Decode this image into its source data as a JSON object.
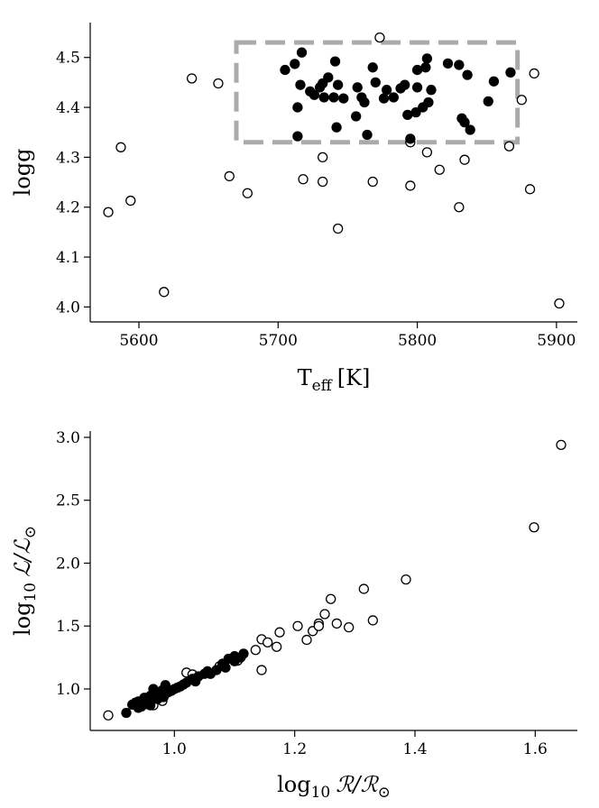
{
  "colors": {
    "open_marker_face": "#ffffff",
    "filled_marker_face": "#000000",
    "selection_box": "#aaaaaa",
    "axes": "#000000"
  },
  "chart_data": [
    {
      "type": "scatter",
      "title": "",
      "xlabel_main": "T",
      "xlabel_sub": "eff",
      "xlabel_unit": "[K]",
      "ylabel": "logg",
      "xlim": [
        5565,
        5915
      ],
      "ylim": [
        3.97,
        4.57
      ],
      "xticks": [
        5600,
        5700,
        5800,
        5900
      ],
      "yticks": [
        4.0,
        4.1,
        4.2,
        4.3,
        4.4,
        4.5
      ],
      "ytick_labels": [
        "4.0",
        "4.1",
        "4.2",
        "4.3",
        "4.4",
        "4.5"
      ],
      "grid": false,
      "selection_box": {
        "x_range": [
          5670,
          5872
        ],
        "y_range": [
          4.33,
          4.53
        ],
        "style": "dashed"
      },
      "series": [
        {
          "marker": "open",
          "x": [
            5578,
            5587,
            5594,
            5618,
            5638,
            5657,
            5665,
            5678,
            5718,
            5732,
            5732,
            5743,
            5768,
            5773,
            5795,
            5795,
            5807,
            5816,
            5830,
            5834,
            5866,
            5875,
            5881,
            5884,
            5902
          ],
          "y": [
            4.19,
            4.32,
            4.213,
            4.03,
            4.458,
            4.448,
            4.262,
            4.228,
            4.256,
            4.3,
            4.251,
            4.157,
            4.251,
            4.54,
            4.243,
            4.33,
            4.31,
            4.275,
            4.2,
            4.295,
            4.322,
            4.415,
            4.236,
            4.468,
            4.007
          ]
        },
        {
          "marker": "filled",
          "x": [
            5705,
            5712,
            5714,
            5716,
            5714,
            5717,
            5723,
            5726,
            5730,
            5732,
            5733,
            5736,
            5740,
            5741,
            5743,
            5742,
            5747,
            5756,
            5757,
            5760,
            5762,
            5764,
            5768,
            5770,
            5776,
            5778,
            5783,
            5788,
            5791,
            5793,
            5795,
            5799,
            5800,
            5800,
            5804,
            5806,
            5807,
            5808,
            5810,
            5822,
            5830,
            5832,
            5834,
            5836,
            5838,
            5851,
            5855,
            5867
          ],
          "y": [
            4.475,
            4.487,
            4.342,
            4.445,
            4.4,
            4.51,
            4.432,
            4.425,
            4.44,
            4.448,
            4.42,
            4.46,
            4.42,
            4.492,
            4.445,
            4.36,
            4.418,
            4.382,
            4.44,
            4.42,
            4.41,
            4.345,
            4.48,
            4.45,
            4.418,
            4.435,
            4.42,
            4.438,
            4.445,
            4.385,
            4.337,
            4.39,
            4.475,
            4.44,
            4.4,
            4.48,
            4.498,
            4.41,
            4.435,
            4.488,
            4.485,
            4.378,
            4.37,
            4.465,
            4.355,
            4.412,
            4.452,
            4.47
          ]
        }
      ]
    },
    {
      "type": "scatter",
      "title": "",
      "xlabel_prefix": "log",
      "xlabel_sub": "10",
      "xlabel_symbol": "ℛ/ℛ",
      "xlabel_subsymbol": "⊙",
      "ylabel_prefix": "log",
      "ylabel_sub": "10",
      "ylabel_symbol": "ℒ/ℒ",
      "ylabel_subsymbol": "⊙",
      "xlim": [
        0.86,
        1.67
      ],
      "ylim": [
        0.67,
        3.05
      ],
      "xticks": [
        1.0,
        1.2,
        1.4,
        1.6
      ],
      "xtick_labels": [
        "1.0",
        "1.2",
        "1.4",
        "1.6"
      ],
      "yticks": [
        1.0,
        1.5,
        2.0,
        2.5,
        3.0
      ],
      "ytick_labels": [
        "1.0",
        "1.5",
        "2.0",
        "2.5",
        "3.0"
      ],
      "grid": false,
      "series": [
        {
          "marker": "open",
          "x": [
            0.89,
            0.965,
            0.98,
            0.985,
            1.02,
            1.03,
            1.055,
            1.075,
            1.105,
            1.135,
            1.145,
            1.145,
            1.155,
            1.17,
            1.175,
            1.205,
            1.22,
            1.23,
            1.24,
            1.24,
            1.25,
            1.26,
            1.27,
            1.29,
            1.315,
            1.33,
            1.385,
            1.598,
            1.643
          ],
          "y": [
            0.79,
            0.87,
            0.905,
            0.96,
            1.13,
            1.115,
            1.135,
            1.18,
            1.225,
            1.31,
            1.395,
            1.15,
            1.37,
            1.335,
            1.45,
            1.5,
            1.39,
            1.46,
            1.52,
            1.5,
            1.595,
            1.715,
            1.52,
            1.49,
            1.795,
            1.545,
            1.87,
            2.285,
            2.94
          ]
        },
        {
          "marker": "filled",
          "x": [
            0.92,
            0.93,
            0.935,
            0.94,
            0.945,
            0.95,
            0.955,
            0.96,
            0.965,
            0.97,
            0.972,
            0.975,
            0.98,
            0.982,
            0.985,
            0.99,
            0.995,
            1.0,
            1.005,
            1.01,
            1.015,
            1.02,
            1.03,
            1.035,
            1.04,
            1.05,
            1.055,
            1.06,
            1.07,
            1.08,
            1.085,
            1.09,
            1.1,
            1.1,
            1.11,
            1.115,
            0.94,
            0.95,
            0.96
          ],
          "y": [
            0.81,
            0.875,
            0.89,
            0.9,
            0.86,
            0.93,
            0.88,
            0.945,
            1.0,
            0.96,
            0.92,
            0.97,
            0.99,
            0.935,
            1.03,
            0.975,
            0.985,
            1.0,
            1.01,
            1.02,
            1.035,
            1.05,
            1.08,
            1.06,
            1.1,
            1.12,
            1.14,
            1.12,
            1.15,
            1.2,
            1.17,
            1.24,
            1.26,
            1.22,
            1.25,
            1.28,
            0.85,
            0.9,
            0.87
          ]
        }
      ]
    }
  ]
}
